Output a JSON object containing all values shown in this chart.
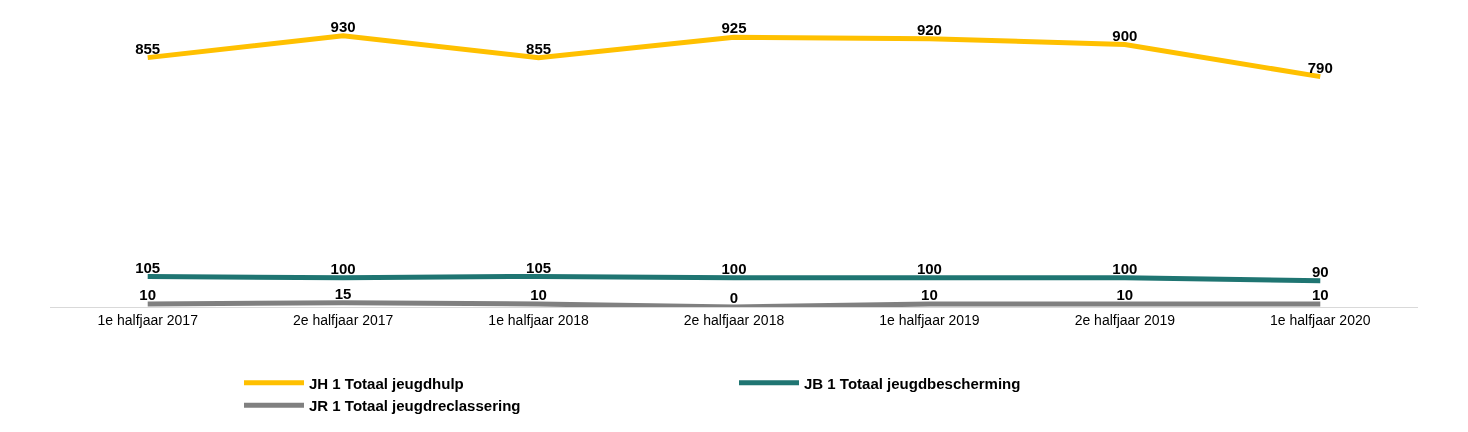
{
  "chart_data": {
    "type": "line",
    "categories": [
      "1e halfjaar 2017",
      "2e halfjaar 2017",
      "1e halfjaar 2018",
      "2e halfjaar 2018",
      "1e halfjaar 2019",
      "2e halfjaar 2019",
      "1e halfjaar 2020"
    ],
    "series": [
      {
        "name": "JH 1 Totaal jeugdhulp",
        "color": "#ffc000",
        "values": [
          855,
          930,
          855,
          925,
          920,
          900,
          790
        ]
      },
      {
        "name": "JB 1 Totaal jeugdbescherming",
        "color": "#1f7572",
        "values": [
          105,
          100,
          105,
          100,
          100,
          100,
          90
        ]
      },
      {
        "name": "JR 1 Totaal jeugdreclassering",
        "color": "#808080",
        "values": [
          10,
          15,
          10,
          0,
          10,
          10,
          10
        ]
      }
    ],
    "data_labels": true,
    "legend": "bottom",
    "grid": false,
    "marker": "none",
    "line_style": "solid",
    "tick_labels": "x"
  }
}
